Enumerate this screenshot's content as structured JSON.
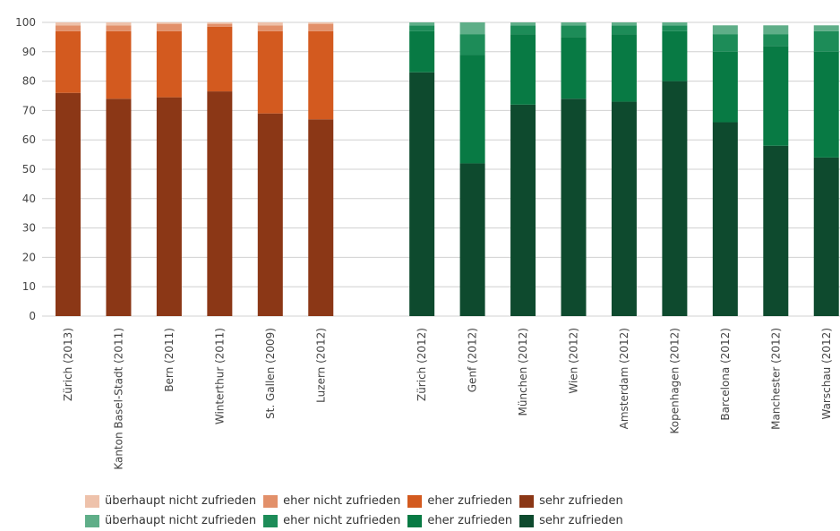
{
  "chart_data": {
    "type": "bar",
    "stacked": true,
    "ylim": [
      0,
      100
    ],
    "yticks": [
      0,
      10,
      20,
      30,
      40,
      50,
      60,
      70,
      80,
      90,
      100
    ],
    "grid": true,
    "legend_position": "bottom",
    "groups": [
      {
        "categories": [
          "Zürich (2013)",
          "Kanton Basel-Stadt (2011)",
          "Bern (2011)",
          "Winterthur (2011)",
          "St. Gallen (2009)",
          "Luzern (2012)"
        ],
        "series": [
          {
            "name": "sehr zufrieden",
            "color": "#8b3716",
            "values": [
              76,
              74,
              74.5,
              76.5,
              69,
              67
            ]
          },
          {
            "name": "eher zufrieden",
            "color": "#d35a1f",
            "values": [
              21,
              23,
              22.5,
              22,
              28,
              30
            ]
          },
          {
            "name": "eher nicht zufrieden",
            "color": "#e2906a",
            "values": [
              2,
              2,
              2.5,
              1,
              2,
              2.5
            ]
          },
          {
            "name": "überhaupt nicht zufrieden",
            "color": "#eec2ab",
            "values": [
              1,
              1,
              0.5,
              0.5,
              1,
              0.5
            ]
          }
        ]
      },
      {
        "categories": [
          "Zürich (2012)",
          "Genf (2012)",
          "München (2012)",
          "Wien (2012)",
          "Amsterdam (2012)",
          "Kopenhagen (2012)",
          "Barcelona (2012)",
          "Manchester (2012)",
          "Warschau (2012)"
        ],
        "series": [
          {
            "name": "sehr zufrieden",
            "color": "#0e4a2e",
            "values": [
              83,
              52,
              72,
              74,
              73,
              80,
              66,
              58,
              54
            ]
          },
          {
            "name": "eher zufrieden",
            "color": "#087a44",
            "values": [
              14,
              37,
              24,
              21,
              23,
              17,
              24,
              34,
              36
            ]
          },
          {
            "name": "eher nicht zufrieden",
            "color": "#1d8c58",
            "values": [
              2,
              7,
              3,
              4,
              3,
              2,
              6,
              4,
              7
            ]
          },
          {
            "name": "überhaupt nicht zufrieden",
            "color": "#5fae88",
            "values": [
              1,
              4,
              1,
              1,
              1,
              1,
              3,
              3,
              2
            ]
          }
        ]
      }
    ]
  }
}
